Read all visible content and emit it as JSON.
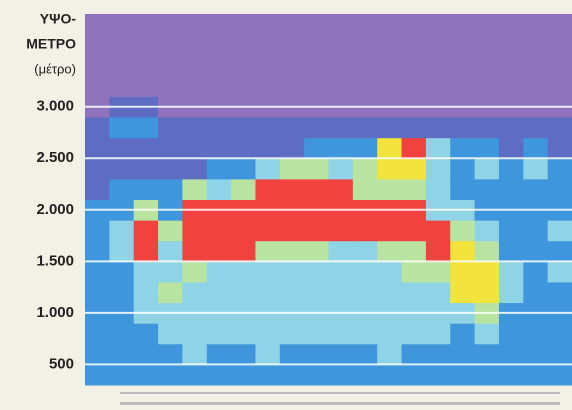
{
  "chart_data": {
    "type": "heatmap",
    "title_lines": [
      "ΥΨΟ-",
      "ΜΕΤΡΟ",
      "(μέτρο)"
    ],
    "ylim": [
      300,
      3900
    ],
    "yticks": [
      500,
      {
        "value": 1000,
        "label": "1.000"
      },
      {
        "value": 1500,
        "label": "1.500"
      },
      {
        "value": 2000,
        "label": "2.000"
      },
      {
        "value": 2500,
        "label": "2.500"
      },
      {
        "value": 3000,
        "label": "3.000"
      }
    ],
    "grid": true,
    "level_colors": [
      "#8f74bd",
      "#5e6cc4",
      "#3f96dc",
      "#8fd3e6",
      "#b9e3a0",
      "#f2e43c",
      "#f0423e"
    ],
    "z": [
      [
        2,
        2,
        2,
        2,
        2,
        2,
        2,
        2,
        2,
        2,
        2,
        2,
        2,
        2,
        2,
        2,
        2,
        2,
        2,
        2
      ],
      [
        2,
        2,
        2,
        2,
        3,
        2,
        2,
        3,
        2,
        2,
        2,
        2,
        3,
        2,
        2,
        2,
        2,
        2,
        2,
        2
      ],
      [
        2,
        2,
        2,
        3,
        3,
        3,
        3,
        3,
        3,
        3,
        3,
        3,
        3,
        3,
        3,
        2,
        3,
        2,
        2,
        2
      ],
      [
        2,
        2,
        3,
        3,
        3,
        3,
        3,
        3,
        3,
        3,
        3,
        3,
        3,
        3,
        3,
        3,
        4,
        2,
        2,
        2
      ],
      [
        2,
        2,
        3,
        4,
        3,
        3,
        3,
        3,
        3,
        3,
        3,
        3,
        3,
        3,
        3,
        5,
        5,
        3,
        2,
        2
      ],
      [
        2,
        2,
        3,
        3,
        4,
        3,
        3,
        3,
        3,
        3,
        3,
        3,
        3,
        4,
        4,
        5,
        5,
        3,
        2,
        3
      ],
      [
        2,
        3,
        6,
        3,
        6,
        6,
        6,
        4,
        4,
        4,
        3,
        3,
        4,
        4,
        6,
        5,
        4,
        2,
        2,
        2
      ],
      [
        2,
        3,
        6,
        4,
        6,
        6,
        6,
        6,
        6,
        6,
        6,
        6,
        6,
        6,
        6,
        4,
        3,
        2,
        2,
        3
      ],
      [
        2,
        2,
        4,
        2,
        6,
        6,
        6,
        6,
        6,
        6,
        6,
        6,
        6,
        6,
        3,
        3,
        2,
        2,
        2,
        2
      ],
      [
        1,
        2,
        2,
        2,
        4,
        3,
        4,
        6,
        6,
        6,
        6,
        4,
        4,
        4,
        3,
        2,
        2,
        2,
        2,
        2
      ],
      [
        1,
        1,
        1,
        1,
        1,
        2,
        2,
        3,
        4,
        4,
        3,
        4,
        5,
        5,
        3,
        2,
        3,
        2,
        3,
        2
      ],
      [
        1,
        1,
        1,
        1,
        1,
        1,
        1,
        1,
        1,
        2,
        2,
        2,
        5,
        6,
        3,
        2,
        2,
        1,
        2,
        1
      ],
      [
        1,
        2,
        2,
        1,
        1,
        1,
        1,
        1,
        1,
        1,
        1,
        1,
        1,
        1,
        1,
        1,
        1,
        1,
        1,
        1
      ],
      [
        0,
        1,
        1,
        0,
        0,
        0,
        0,
        0,
        0,
        0,
        0,
        0,
        0,
        0,
        0,
        0,
        0,
        0,
        0,
        0
      ],
      [
        0,
        0,
        0,
        0,
        0,
        0,
        0,
        0,
        0,
        0,
        0,
        0,
        0,
        0,
        0,
        0,
        0,
        0,
        0,
        0
      ],
      [
        0,
        0,
        0,
        0,
        0,
        0,
        0,
        0,
        0,
        0,
        0,
        0,
        0,
        0,
        0,
        0,
        0,
        0,
        0,
        0
      ],
      [
        0,
        0,
        0,
        0,
        0,
        0,
        0,
        0,
        0,
        0,
        0,
        0,
        0,
        0,
        0,
        0,
        0,
        0,
        0,
        0
      ],
      [
        0,
        0,
        0,
        0,
        0,
        0,
        0,
        0,
        0,
        0,
        0,
        0,
        0,
        0,
        0,
        0,
        0,
        0,
        0,
        0
      ]
    ]
  }
}
